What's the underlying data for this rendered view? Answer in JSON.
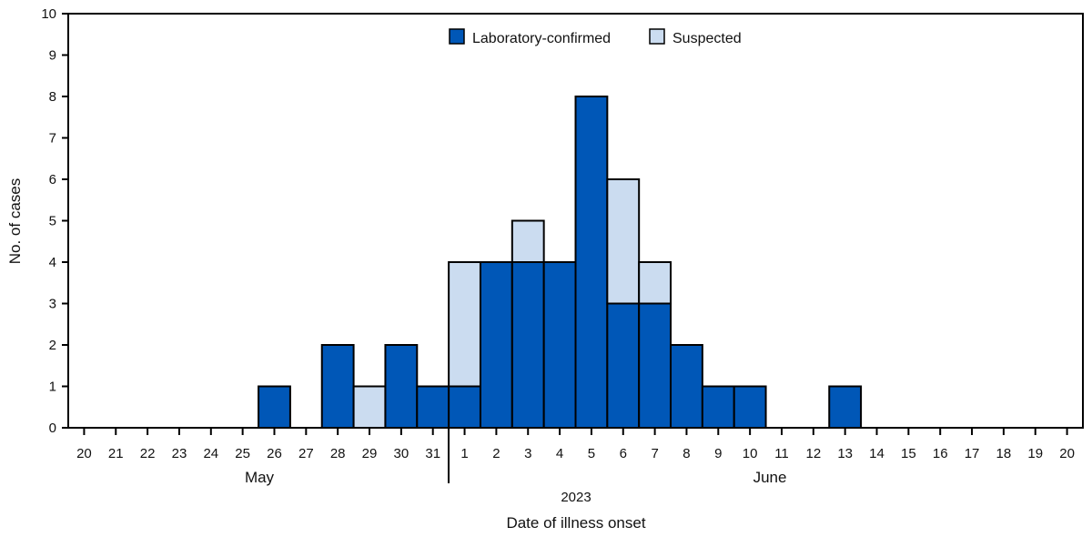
{
  "chart_data": {
    "type": "bar",
    "stacked": true,
    "xlabel": "Date of illness onset",
    "ylabel": "No. of cases",
    "year_label": "2023",
    "month_labels": [
      "May",
      "June"
    ],
    "ylim": [
      0,
      10
    ],
    "yticks": [
      0,
      1,
      2,
      3,
      4,
      5,
      6,
      7,
      8,
      9,
      10
    ],
    "grid": false,
    "legend_position": "top-center",
    "categories": [
      "20",
      "21",
      "22",
      "23",
      "24",
      "25",
      "26",
      "27",
      "28",
      "29",
      "30",
      "31",
      "1",
      "2",
      "3",
      "4",
      "5",
      "6",
      "7",
      "8",
      "9",
      "10",
      "11",
      "12",
      "13",
      "14",
      "15",
      "16",
      "17",
      "18",
      "19",
      "20"
    ],
    "series": [
      {
        "name": "Laboratory-confirmed",
        "color": "#0057b7",
        "values": [
          0,
          0,
          0,
          0,
          0,
          0,
          1,
          0,
          2,
          0,
          2,
          1,
          1,
          4,
          4,
          4,
          8,
          3,
          3,
          2,
          1,
          1,
          0,
          0,
          1,
          0,
          0,
          0,
          0,
          0,
          0,
          0
        ]
      },
      {
        "name": "Suspected",
        "color": "#cbdcf0",
        "values": [
          0,
          0,
          0,
          0,
          0,
          0,
          0,
          0,
          0,
          1,
          0,
          0,
          3,
          0,
          1,
          0,
          0,
          3,
          1,
          0,
          0,
          0,
          0,
          0,
          0,
          0,
          0,
          0,
          0,
          0,
          0,
          0
        ]
      }
    ]
  }
}
